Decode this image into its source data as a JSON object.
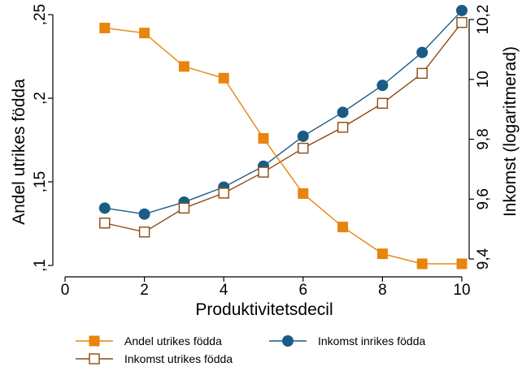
{
  "colors": {
    "andel": "#E8850C",
    "inkomst_inrikes": "#1A5C85",
    "inkomst_utrikes": "#8B4A12",
    "axis": "#000000"
  },
  "chart_data": {
    "type": "line",
    "xlabel": "Produktivitetsdecil",
    "ylabel_left": "Andel utrikes födda",
    "ylabel_right": "Inkomst (logaritmerad)",
    "x_ticks": [
      "0",
      "2",
      "4",
      "6",
      "8",
      "10"
    ],
    "x_tick_values": [
      0,
      2,
      4,
      6,
      8,
      10
    ],
    "xlim": [
      0,
      10
    ],
    "y_left_ticks": [
      ",1",
      ",15",
      ",2",
      ",25"
    ],
    "y_left_tick_values": [
      0.1,
      0.15,
      0.2,
      0.25
    ],
    "ylim_left": [
      0.095,
      0.258
    ],
    "y_right_ticks": [
      "9,4",
      "9,6",
      "9,8",
      "10",
      "10,2"
    ],
    "y_right_tick_values": [
      9.4,
      9.6,
      9.8,
      10.0,
      10.2
    ],
    "ylim_right": [
      9.38,
      10.25
    ],
    "x": [
      1,
      2,
      3,
      4,
      5,
      6,
      7,
      8,
      9,
      10
    ],
    "series": [
      {
        "name": "Andel utrikes födda",
        "axis": "left",
        "marker": "filled-square",
        "values": [
          0.242,
          0.239,
          0.219,
          0.212,
          0.176,
          0.143,
          0.123,
          0.107,
          0.101,
          0.101
        ]
      },
      {
        "name": "Inkomst inrikes födda",
        "axis": "right",
        "marker": "filled-circle",
        "values": [
          9.57,
          9.55,
          9.59,
          9.64,
          9.71,
          9.81,
          9.89,
          9.98,
          10.09,
          10.23
        ]
      },
      {
        "name": "Inkomst utrikes födda",
        "axis": "right",
        "marker": "hollow-square",
        "values": [
          9.52,
          9.49,
          9.57,
          9.62,
          9.69,
          9.77,
          9.84,
          9.92,
          10.02,
          10.19
        ]
      }
    ],
    "legend": {
      "placement": "bottom",
      "order": [
        "Andel utrikes födda",
        "Inkomst inrikes födda",
        "Inkomst utrikes födda"
      ]
    }
  }
}
